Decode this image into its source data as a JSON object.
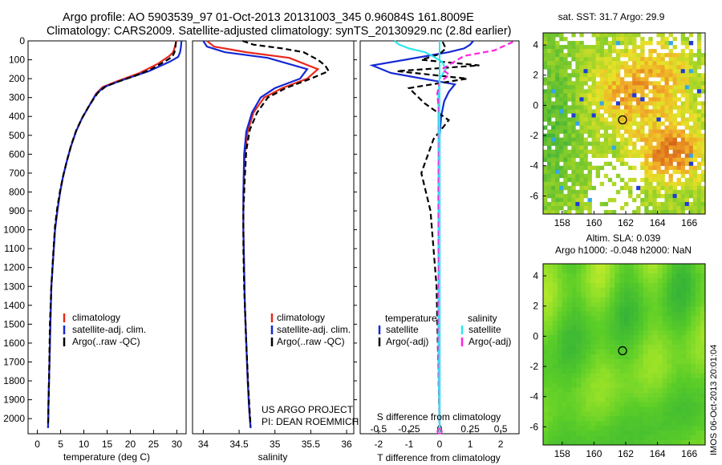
{
  "header": {
    "line1": "Argo profile: AO 5903539_97 01-Oct-2013 20131003_345 0.96084S 161.8009E",
    "line2": "Climatology: CARS2009. Satellite-adjusted climatology: synTS_20130929.nc (2.8d earlier)"
  },
  "colors": {
    "climatology": "#e8291c",
    "satellite": "#1428d2",
    "argo": "#000000",
    "satellite_salinity": "#2ee6ef",
    "argo_salinity": "#ff22dd"
  },
  "chart_data": [
    {
      "id": "temperature",
      "type": "line",
      "xlabel": "temperature (deg C)",
      "xticks": [
        0,
        5,
        10,
        15,
        20,
        25,
        30
      ],
      "xlim": [
        -2,
        32
      ],
      "ylim": [
        0,
        2080
      ],
      "yticks": [
        0,
        100,
        200,
        300,
        400,
        500,
        600,
        700,
        800,
        900,
        1000,
        1100,
        1200,
        1300,
        1400,
        1500,
        1600,
        1700,
        1800,
        1900,
        2000
      ],
      "legend": [
        "climatology",
        "satellite-adj. clim.",
        "Argo(..raw -QC)"
      ],
      "series": [
        {
          "name": "climatology",
          "x": [
            29.9,
            29.6,
            29.2,
            28.4,
            26.0,
            22.0,
            17.0,
            14.0,
            12.6,
            11.0,
            9.6,
            8.3,
            7.2,
            6.3,
            5.5,
            4.9,
            4.3,
            3.8,
            3.4,
            3.0,
            2.8,
            2.6,
            2.4,
            2.3
          ],
          "y": [
            0,
            30,
            60,
            80,
            120,
            170,
            215,
            245,
            280,
            350,
            410,
            480,
            560,
            640,
            720,
            800,
            900,
            1000,
            1150,
            1300,
            1500,
            1700,
            1900,
            2050
          ]
        },
        {
          "name": "satellite",
          "x": [
            31.0,
            30.9,
            30.7,
            30.3,
            28.5,
            24.0,
            18.0,
            14.3,
            12.7,
            11.0,
            9.6,
            8.3,
            7.2,
            6.3,
            5.5,
            4.9,
            4.3,
            3.8,
            3.4,
            3.0,
            2.8,
            2.6,
            2.4,
            2.3
          ],
          "y": [
            0,
            30,
            60,
            85,
            110,
            160,
            210,
            245,
            280,
            350,
            410,
            480,
            560,
            640,
            720,
            800,
            900,
            1000,
            1150,
            1300,
            1500,
            1700,
            1900,
            2050
          ]
        },
        {
          "name": "argo",
          "x": [
            29.8,
            29.7,
            29.5,
            29.0,
            27.0,
            24.5,
            21.0,
            17.5,
            14.8,
            13.0,
            11.2,
            9.8,
            8.4,
            7.3,
            6.4,
            5.6,
            4.9,
            4.3,
            3.8,
            3.4,
            3.0,
            2.7,
            2.5,
            2.3
          ],
          "y": [
            5,
            30,
            60,
            85,
            115,
            150,
            185,
            215,
            240,
            275,
            340,
            400,
            470,
            550,
            630,
            710,
            790,
            880,
            980,
            1130,
            1300,
            1500,
            1800,
            2040
          ]
        }
      ]
    },
    {
      "id": "salinity",
      "type": "line",
      "xlabel": "salinity",
      "xticks": [
        34,
        34.5,
        35,
        35.5,
        36
      ],
      "xlim": [
        33.85,
        36.1
      ],
      "ylim": [
        0,
        2080
      ],
      "legend": [
        "climatology",
        "satellite-adj. clim.",
        "Argo(..raw -QC)"
      ],
      "annotations": [
        "US ARGO PROJECT",
        "PI: DEAN ROEMMICH"
      ],
      "series": [
        {
          "name": "climatology",
          "x": [
            34.05,
            34.15,
            34.6,
            35.2,
            35.6,
            35.45,
            35.1,
            34.85,
            34.7,
            34.62,
            34.58,
            34.56,
            34.56,
            34.57,
            34.58,
            34.6,
            34.62,
            34.64,
            34.66
          ],
          "y": [
            0,
            30,
            60,
            90,
            150,
            200,
            250,
            300,
            380,
            480,
            600,
            800,
            1000,
            1200,
            1400,
            1600,
            1800,
            1950,
            2050
          ]
        },
        {
          "name": "satellite",
          "x": [
            34.0,
            34.05,
            34.3,
            34.9,
            35.45,
            35.35,
            35.0,
            34.8,
            34.68,
            34.6,
            34.57,
            34.56,
            34.56,
            34.57,
            34.58,
            34.6,
            34.62,
            34.64,
            34.66
          ],
          "y": [
            0,
            30,
            60,
            90,
            150,
            200,
            250,
            300,
            380,
            480,
            600,
            800,
            1000,
            1200,
            1400,
            1600,
            1800,
            1950,
            2050
          ]
        },
        {
          "name": "argo",
          "x": [
            34.55,
            34.7,
            35.1,
            35.4,
            35.6,
            35.7,
            35.75,
            35.5,
            35.15,
            34.9,
            34.75,
            34.65,
            34.6,
            34.58,
            34.56,
            34.56,
            34.57,
            34.6,
            34.63,
            34.66
          ],
          "y": [
            0,
            20,
            40,
            60,
            100,
            130,
            160,
            200,
            250,
            300,
            380,
            470,
            580,
            720,
            900,
            1100,
            1300,
            1600,
            1850,
            2040
          ]
        }
      ]
    },
    {
      "id": "difference",
      "type": "line",
      "xlabel": "T difference from climatology",
      "xticks": [
        -2,
        -1,
        0,
        1,
        2
      ],
      "xlim": [
        -2.6,
        2.6
      ],
      "top_label": "S difference from climatology",
      "top_ticks": [
        "-0.5",
        "-0.25",
        "0",
        "0.25",
        "0.5"
      ],
      "top_tick_values": [
        -0.5,
        -0.25,
        0,
        0.25,
        0.5
      ],
      "ylim": [
        0,
        2080
      ],
      "legend_titles": [
        "temperature",
        "salinity"
      ],
      "legend": [
        "satellite",
        "Argo(-adj)",
        "satellite",
        "Argo(-adj)"
      ],
      "series": [
        {
          "name": "temperature-satellite",
          "x": [
            1.1,
            1.0,
            0.8,
            0.3,
            -2.2,
            -1.6,
            0.5,
            0.3,
            0.15,
            0.05,
            0.0,
            0.0,
            0.0,
            0.0,
            0.0,
            0.0
          ],
          "y": [
            0,
            20,
            40,
            60,
            130,
            170,
            230,
            270,
            320,
            400,
            500,
            700,
            1000,
            1400,
            1800,
            2050
          ]
        },
        {
          "name": "temperature-argo",
          "x": [
            0.1,
            0.2,
            0.0,
            -0.6,
            1.3,
            -1.4,
            0.9,
            -1.0,
            -0.5,
            0.3,
            -0.2,
            -0.6,
            -0.3,
            -0.1,
            0.0
          ],
          "y": [
            5,
            40,
            70,
            100,
            130,
            160,
            200,
            250,
            330,
            420,
            520,
            700,
            900,
            1300,
            2040
          ]
        },
        {
          "name": "salinity-satellite",
          "x": [
            -0.37,
            -0.33,
            -0.25,
            -0.12,
            -0.06,
            0.02,
            0.05,
            0.0,
            -0.01,
            -0.01,
            -0.01,
            -0.01,
            -0.01,
            0.0
          ],
          "y": [
            0,
            20,
            40,
            60,
            80,
            110,
            150,
            200,
            300,
            500,
            800,
            1200,
            1700,
            2050
          ]
        },
        {
          "name": "salinity-argo",
          "x": [
            0.6,
            0.45,
            0.2,
            0.12,
            0.02,
            0.08,
            0.0,
            -0.02,
            0.0,
            -0.01,
            0.0
          ],
          "y": [
            5,
            50,
            80,
            110,
            150,
            180,
            220,
            280,
            400,
            800,
            2040
          ]
        }
      ]
    },
    {
      "id": "sst-map",
      "type": "heatmap",
      "title": "sat. SST: 31.7 Argo: 29.9",
      "xticks": [
        158,
        160,
        162,
        164,
        166
      ],
      "yticks": [
        4,
        2,
        0,
        -2,
        -4,
        -6
      ],
      "xlim": [
        156.8,
        167.0
      ],
      "ylim": [
        -7.2,
        4.8
      ],
      "marker": {
        "lon": 161.8,
        "lat": -0.96
      }
    },
    {
      "id": "sla-map",
      "type": "heatmap",
      "title": "Altim. SLA: 0.039",
      "subtitle": "Argo h1000: -0.048 h2000: NaN",
      "xticks": [
        158,
        160,
        162,
        164,
        166
      ],
      "yticks": [
        4,
        2,
        0,
        -2,
        -4,
        -6
      ],
      "xlim": [
        156.8,
        167.0
      ],
      "ylim": [
        -7.2,
        4.8
      ],
      "marker": {
        "lon": 161.8,
        "lat": -0.96
      }
    }
  ],
  "watermark": "IMOS 06-Oct-2013 20:01:04"
}
